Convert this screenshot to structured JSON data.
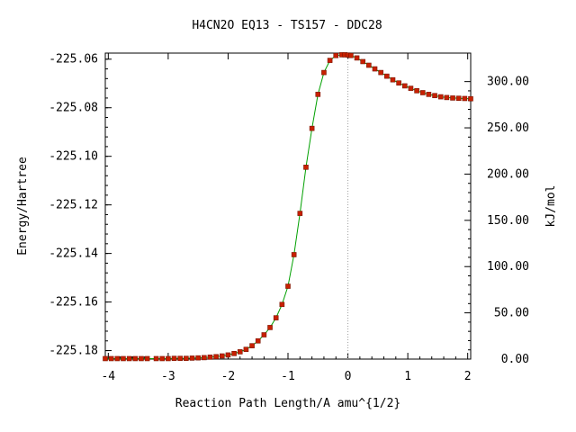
{
  "chart_data": {
    "type": "line",
    "title": "H4CN2O   EQ13 - TS157 - DDC28",
    "xlabel": "Reaction Path Length/A amu^{1/2}",
    "ylabel": "Energy/Hartree",
    "y2label": "kJ/mol",
    "xlim": [
      -4.05,
      2.05
    ],
    "ylim": [
      -225.1835,
      -225.0575
    ],
    "y2lim": [
      0.0,
      330.8
    ],
    "x_ticks": [
      -4,
      -3,
      -2,
      -1,
      0,
      1,
      2
    ],
    "x_tick_labels": [
      "-4",
      "-3",
      "-2",
      "-1",
      "0",
      "1",
      "2"
    ],
    "y_ticks": [
      -225.06,
      -225.08,
      -225.1,
      -225.12,
      -225.14,
      -225.16,
      -225.18
    ],
    "y_tick_labels": [
      "-225.06",
      "-225.08",
      "-225.10",
      "-225.12",
      "-225.14",
      "-225.16",
      "-225.18"
    ],
    "y2_ticks": [
      0,
      50,
      100,
      150,
      200,
      250,
      300
    ],
    "y2_tick_labels": [
      "0.00",
      "50.00",
      "100.00",
      "150.00",
      "200.00",
      "250.00",
      "300.00"
    ],
    "ts_marker_x": 0,
    "grid": false,
    "colors": {
      "line": "#00a000",
      "marker": "#c82000",
      "marker_edge": "#7a1400",
      "ts_line": "#a0a0a0"
    },
    "series": [
      {
        "x": [
          -4.05,
          -3.95,
          -3.85,
          -3.75,
          -3.65,
          -3.55,
          -3.45,
          -3.35,
          -3.2,
          -3.1,
          -3.0,
          -2.9,
          -2.8,
          -2.7,
          -2.6,
          -2.5,
          -2.4,
          -2.3,
          -2.2,
          -2.1,
          -2.0,
          -1.9,
          -1.8,
          -1.7,
          -1.6,
          -1.5,
          -1.4,
          -1.3,
          -1.2,
          -1.1,
          -1.0,
          -0.9,
          -0.8,
          -0.7,
          -0.6,
          -0.5,
          -0.4,
          -0.3,
          -0.2,
          -0.1,
          -0.05,
          0.0,
          0.05,
          0.15,
          0.25,
          0.35,
          0.45,
          0.55,
          0.65,
          0.75,
          0.85,
          0.95,
          1.05,
          1.15,
          1.25,
          1.35,
          1.45,
          1.55,
          1.65,
          1.75,
          1.85,
          1.95,
          2.05
        ],
        "y": [
          -225.1833,
          -225.1833,
          -225.1833,
          -225.1833,
          -225.1833,
          -225.1833,
          -225.1833,
          -225.1833,
          -225.1833,
          -225.1833,
          -225.1833,
          -225.1832,
          -225.1832,
          -225.1832,
          -225.1831,
          -225.183,
          -225.1829,
          -225.1827,
          -225.1825,
          -225.1822,
          -225.1818,
          -225.1812,
          -225.1805,
          -225.1795,
          -225.178,
          -225.176,
          -225.1735,
          -225.1705,
          -225.1665,
          -225.161,
          -225.1535,
          -225.1405,
          -225.1235,
          -225.1045,
          -225.0885,
          -225.0745,
          -225.0655,
          -225.0605,
          -225.0585,
          -225.0582,
          -225.0582,
          -225.0583,
          -225.0585,
          -225.0595,
          -225.061,
          -225.0625,
          -225.064,
          -225.0655,
          -225.067,
          -225.0685,
          -225.0698,
          -225.071,
          -225.072,
          -225.073,
          -225.0738,
          -225.0745,
          -225.075,
          -225.0755,
          -225.0758,
          -225.076,
          -225.0761,
          -225.0762,
          -225.0763
        ]
      }
    ]
  }
}
